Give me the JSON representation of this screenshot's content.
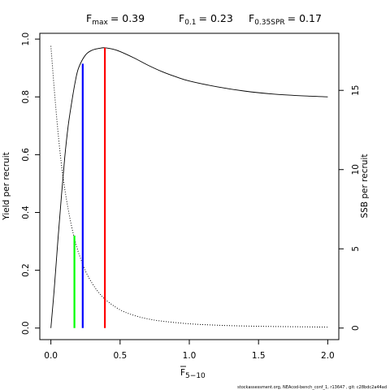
{
  "chart_data": {
    "type": "line",
    "title": {
      "fmax_label": "F",
      "fmax_sub": "max",
      "fmax_value": "= 0.39",
      "f01_label": "F",
      "f01_sub": "0.1",
      "f01_value": "= 0.23",
      "fspr_label": "F",
      "fspr_sub": "0.35SPR",
      "fspr_value": "= 0.17"
    },
    "xlabel": {
      "main": "F",
      "sub": "5−10"
    },
    "ylabel_left": "Yield per recruit",
    "ylabel_right": "SSB per recruit",
    "xlim": [
      -0.08,
      2.08
    ],
    "ylim_left": [
      -0.04,
      1.02
    ],
    "ylim_right": [
      -0.73,
      18.6
    ],
    "x_ticks": [
      0,
      0.5,
      1,
      1.5,
      2
    ],
    "x_tick_labels": [
      "0.0",
      "0.5",
      "1.0",
      "1.5",
      "2.0"
    ],
    "y_left_ticks": [
      0,
      0.2,
      0.4,
      0.6,
      0.8,
      1.0
    ],
    "y_left_tick_labels": [
      "0.0",
      "0.2",
      "0.4",
      "0.6",
      "0.8",
      "1.0"
    ],
    "y_right_ticks": [
      0,
      5,
      10,
      15
    ],
    "y_right_tick_labels": [
      "0",
      "5",
      "10",
      "15"
    ],
    "grid": false,
    "series": [
      {
        "style": "solid",
        "axis": "left",
        "color": "#000000",
        "x": [
          0,
          0.025,
          0.05,
          0.075,
          0.1,
          0.125,
          0.15,
          0.175,
          0.2,
          0.25,
          0.3,
          0.35,
          0.39,
          0.45,
          0.5,
          0.6,
          0.7,
          0.8,
          0.9,
          1.0,
          1.2,
          1.4,
          1.6,
          1.8,
          2.0
        ],
        "y": [
          0.0,
          0.14,
          0.3,
          0.45,
          0.59,
          0.7,
          0.78,
          0.85,
          0.9,
          0.945,
          0.962,
          0.968,
          0.97,
          0.965,
          0.957,
          0.935,
          0.91,
          0.888,
          0.87,
          0.855,
          0.835,
          0.82,
          0.81,
          0.804,
          0.8
        ]
      },
      {
        "style": "dotted",
        "axis": "right",
        "color": "#000000",
        "x": [
          0,
          0.025,
          0.05,
          0.075,
          0.1,
          0.125,
          0.15,
          0.175,
          0.2,
          0.25,
          0.3,
          0.35,
          0.4,
          0.5,
          0.6,
          0.7,
          0.8,
          1.0,
          1.2,
          1.4,
          1.6,
          1.8,
          2.0
        ],
        "y": [
          17.8,
          15.0,
          12.5,
          10.4,
          8.8,
          7.5,
          6.4,
          5.5,
          4.75,
          3.6,
          2.8,
          2.2,
          1.75,
          1.15,
          0.8,
          0.58,
          0.44,
          0.27,
          0.18,
          0.13,
          0.1,
          0.08,
          0.06
        ]
      }
    ],
    "reference_lines": [
      {
        "x": 0.39,
        "y": 0.97,
        "color": "#ff0000"
      },
      {
        "x": 0.23,
        "y": 0.915,
        "color": "#0000ff"
      },
      {
        "x": 0.17,
        "y": 0.32,
        "color": "#00ff00"
      }
    ],
    "footer": "stockassessment.org, NEAcod-bench_conf_1, r13647 , git: c28bdc2a44ad"
  }
}
